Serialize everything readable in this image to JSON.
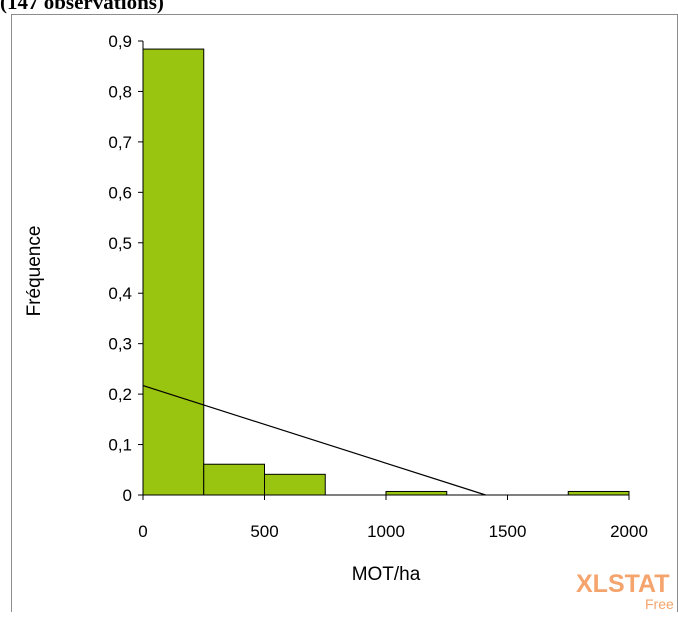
{
  "caption": "(147 observations)",
  "watermark": {
    "brand": "XLSTAT",
    "tag": "Free"
  },
  "colors": {
    "bar_fill": "#99c40f",
    "bar_stroke": "#000000",
    "line": "#000000",
    "watermark": "#f4a46c"
  },
  "chart_data": {
    "type": "bar",
    "title": "",
    "xlabel": "MOT/ha",
    "ylabel": "Fréquence",
    "xlim": [
      0,
      2000
    ],
    "ylim": [
      0,
      0.9
    ],
    "x_ticks": [
      0,
      500,
      1000,
      1500,
      2000
    ],
    "y_ticks": [
      0,
      0.1,
      0.2,
      0.3,
      0.4,
      0.5,
      0.6,
      0.7,
      0.8,
      0.9
    ],
    "y_tick_labels": [
      "0",
      "0,1",
      "0,2",
      "0,3",
      "0,4",
      "0,5",
      "0,6",
      "0,7",
      "0,8",
      "0,9"
    ],
    "bins": [
      [
        0,
        250
      ],
      [
        250,
        500
      ],
      [
        500,
        750
      ],
      [
        750,
        1000
      ],
      [
        1000,
        1250
      ],
      [
        1250,
        1500
      ],
      [
        1500,
        1750
      ],
      [
        1750,
        2000
      ]
    ],
    "values": [
      0.884,
      0.061,
      0.041,
      0.0,
      0.007,
      0.0,
      0.0,
      0.007
    ],
    "fitted_line": {
      "x": [
        0,
        1410
      ],
      "y": [
        0.217,
        0
      ]
    },
    "grid": false,
    "legend": "none"
  }
}
